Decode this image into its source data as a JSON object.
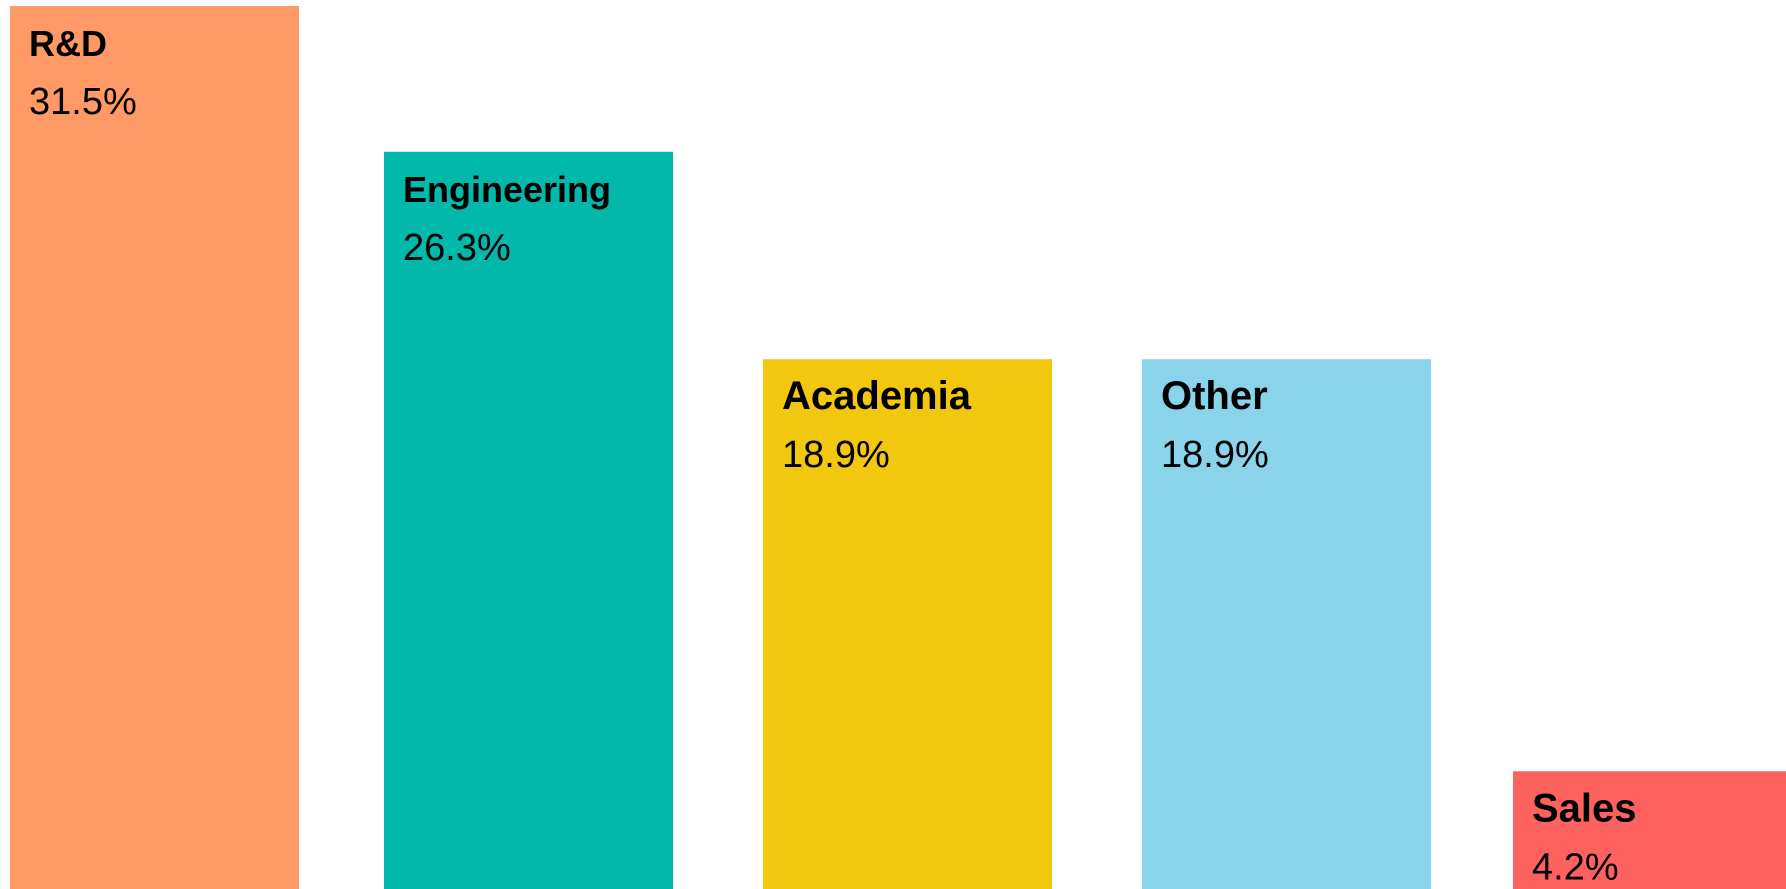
{
  "chart_data": {
    "type": "bar",
    "title": "",
    "xlabel": "",
    "ylabel": "",
    "ylim": [
      0,
      31.5
    ],
    "grid": false,
    "legend": "none",
    "categories": [
      "R&D",
      "Engineering",
      "Academia",
      "Other",
      "Sales"
    ],
    "values": [
      31.5,
      26.3,
      18.9,
      18.9,
      4.2
    ],
    "value_labels": [
      "31.5%",
      "26.3%",
      "18.9%",
      "18.9%",
      "4.2%"
    ],
    "colors": [
      "#FF9966",
      "#02B8AB",
      "#F2C80F",
      "#8AD4EB",
      "#FD625E"
    ]
  }
}
